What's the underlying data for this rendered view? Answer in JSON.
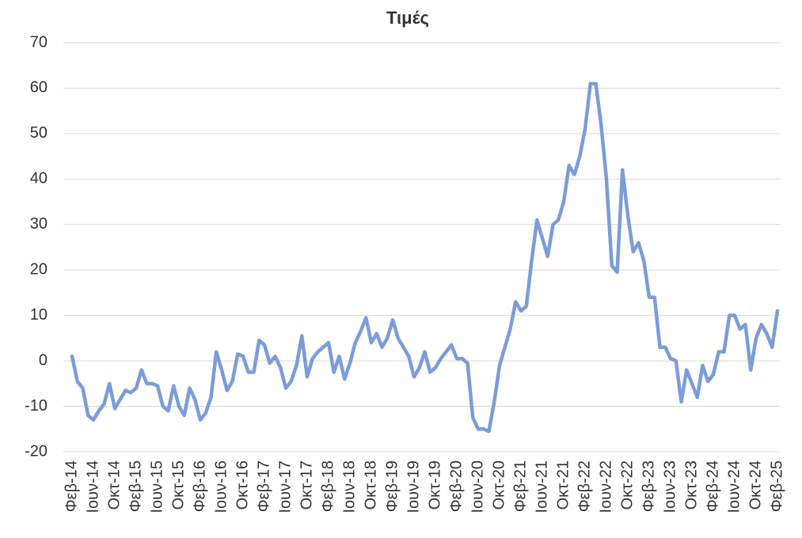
{
  "chart_data": {
    "type": "line",
    "title": "Τιμές",
    "categories": [
      "Φεβ-14",
      null,
      null,
      null,
      "Ιουν-14",
      null,
      null,
      null,
      "Οκτ-14",
      null,
      null,
      null,
      "Φεβ-15",
      null,
      null,
      null,
      "Ιουν-15",
      null,
      null,
      null,
      "Οκτ-15",
      null,
      null,
      null,
      "Φεβ-16",
      null,
      null,
      null,
      "Ιουν-16",
      null,
      null,
      null,
      "Οκτ-16",
      null,
      null,
      null,
      "Φεβ-17",
      null,
      null,
      null,
      "Ιουν-17",
      null,
      null,
      null,
      "Οκτ-17",
      null,
      null,
      null,
      "Φεβ-18",
      null,
      null,
      null,
      "Ιουν-18",
      null,
      null,
      null,
      "Οκτ-18",
      null,
      null,
      null,
      "Φεβ-19",
      null,
      null,
      null,
      "Ιουν-19",
      null,
      null,
      null,
      "Οκτ-19",
      null,
      null,
      null,
      "Φεβ-20",
      null,
      null,
      null,
      "Ιουν-20",
      null,
      null,
      null,
      "Οκτ-20",
      null,
      null,
      null,
      "Φεβ-21",
      null,
      null,
      null,
      "Ιουν-21",
      null,
      null,
      null,
      "Οκτ-21",
      null,
      null,
      null,
      "Φεβ-22",
      null,
      null,
      null,
      "Ιουν-22",
      null,
      null,
      null,
      "Οκτ-22",
      null,
      null,
      null,
      "Φεβ-23",
      null,
      null,
      null,
      "Ιουν-23",
      null,
      null,
      null,
      "Οκτ-23",
      null,
      null,
      null,
      "Φεβ-24",
      null,
      null,
      null,
      "Ιουν-24",
      null,
      null,
      null,
      "Οκτ-24",
      null,
      null,
      null,
      "Φεβ-25"
    ],
    "values": [
      1,
      -4.5,
      -6,
      -12,
      -13,
      -11,
      -9.5,
      -5,
      -10.5,
      -8.5,
      -6.5,
      -7,
      -6,
      -2,
      -5,
      -5,
      -5.5,
      -10,
      -11,
      -5.5,
      -10,
      -12,
      -6,
      -8.5,
      -13,
      -11.5,
      -8,
      2,
      -2,
      -6.5,
      -4.5,
      1.5,
      1,
      -2.5,
      -2.5,
      4.5,
      3.5,
      -0.5,
      1,
      -1.5,
      -6,
      -4.5,
      -1,
      5.5,
      -3.5,
      0.5,
      2,
      3,
      4,
      -2.5,
      1,
      -4,
      -0.5,
      4,
      6.5,
      9.5,
      4,
      6,
      3,
      5,
      9,
      5,
      3,
      1,
      -3.5,
      -1.5,
      2,
      -2.5,
      -1.5,
      0.5,
      2,
      3.5,
      0.5,
      0.5,
      -0.5,
      -12.5,
      -15,
      -15,
      -15.5,
      -9,
      -1,
      3,
      7,
      13,
      11,
      12,
      22,
      31,
      27,
      23,
      30,
      31,
      35,
      43,
      41,
      45,
      51,
      61,
      61,
      52,
      40,
      21,
      19.5,
      42,
      32,
      24,
      26,
      22,
      14,
      14,
      3,
      3,
      0.5,
      0,
      -9,
      -2,
      -5,
      -8,
      -1,
      -4.5,
      -3,
      2,
      2,
      10,
      10,
      7,
      8,
      -2,
      5,
      8,
      6,
      3,
      11
    ],
    "color": "#7b9cd9",
    "ylim": [
      -20,
      70
    ],
    "yticks": [
      -20,
      -10,
      0,
      10,
      20,
      30,
      40,
      50,
      60,
      70
    ],
    "grid": true
  }
}
